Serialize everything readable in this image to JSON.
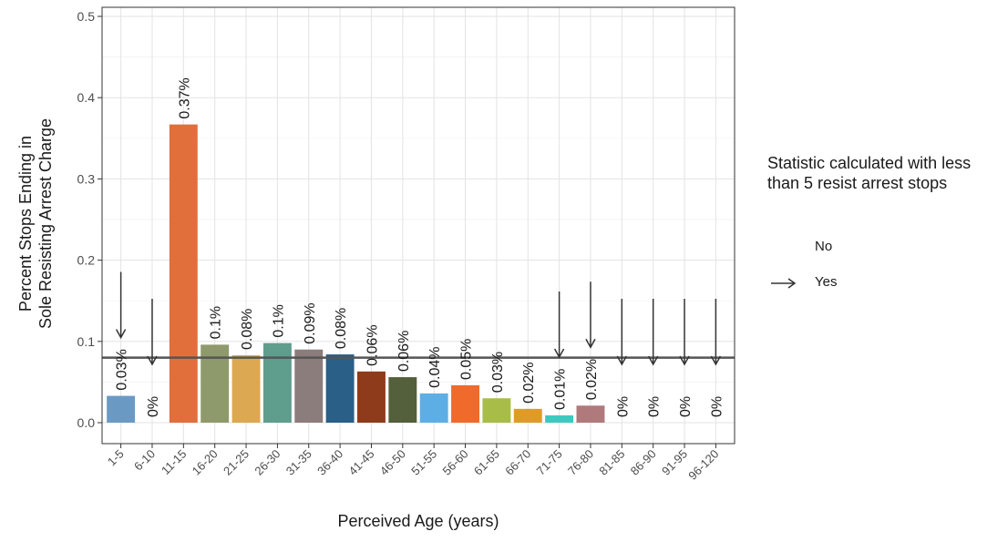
{
  "chart_data": {
    "type": "bar",
    "title": "",
    "xlabel": "Perceived Age (years)",
    "ylabel_lines": [
      "Percent Stops Ending in",
      "Sole Resisting Arrest Charge"
    ],
    "ylim": [
      0,
      0.5
    ],
    "yticks": [
      "0.0",
      "0.1",
      "0.2",
      "0.3",
      "0.4",
      "0.5"
    ],
    "grid": true,
    "reference_line": 0.08,
    "categories": [
      "1-5",
      "6-10",
      "11-15",
      "16-20",
      "21-25",
      "26-30",
      "31-35",
      "36-40",
      "41-45",
      "46-50",
      "51-55",
      "56-60",
      "61-65",
      "66-70",
      "71-75",
      "76-80",
      "81-85",
      "86-90",
      "91-95",
      "96-120"
    ],
    "values": [
      0.033,
      0,
      0.367,
      0.096,
      0.083,
      0.098,
      0.09,
      0.084,
      0.063,
      0.056,
      0.036,
      0.046,
      0.03,
      0.017,
      0.009,
      0.021,
      0,
      0,
      0,
      0
    ],
    "labels": [
      "0.03%",
      "0%",
      "0.37%",
      "0.1%",
      "0.08%",
      "0.1%",
      "0.09%",
      "0.08%",
      "0.06%",
      "0.06%",
      "0.04%",
      "0.05%",
      "0.03%",
      "0.02%",
      "0.01%",
      "0.02%",
      "0%",
      "0%",
      "0%",
      "0%"
    ],
    "colors": [
      "#6a9ac4",
      "#999999",
      "#e06f3c",
      "#8e9a6b",
      "#dca852",
      "#5f9d8d",
      "#8b7d7b",
      "#2a5f88",
      "#8e3b1c",
      "#545f3b",
      "#5eaee6",
      "#f06a2b",
      "#a8bc48",
      "#e09a2a",
      "#3ec9c0",
      "#b07a7c",
      "#999999",
      "#999999",
      "#999999",
      "#999999"
    ],
    "arrow_flag": [
      true,
      true,
      false,
      false,
      false,
      false,
      false,
      false,
      false,
      false,
      false,
      false,
      false,
      false,
      true,
      true,
      true,
      true,
      true,
      true
    ],
    "legend": {
      "title": "Statistic calculated with less than 5 resist arrest stops",
      "position": "right",
      "items": [
        {
          "label": "No",
          "arrow": false
        },
        {
          "label": "Yes",
          "arrow": true
        }
      ]
    }
  }
}
